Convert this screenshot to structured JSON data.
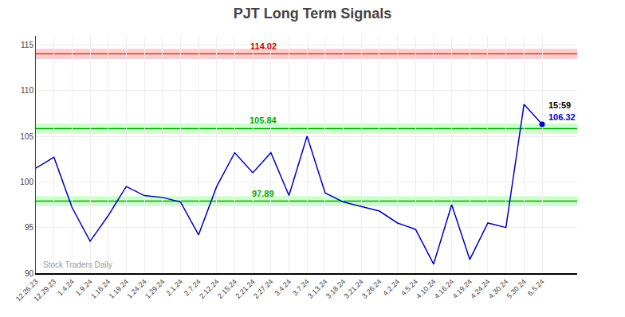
{
  "chart_data": {
    "type": "line",
    "title": "PJT Long Term Signals",
    "categories": [
      "12.26.23",
      "12.29.23",
      "1.4.24",
      "1.9.24",
      "1.16.24",
      "1.19.24",
      "1.24.24",
      "1.29.24",
      "2.1.24",
      "2.7.24",
      "2.12.24",
      "2.15.24",
      "2.21.24",
      "2.27.24",
      "3.4.24",
      "3.7.24",
      "3.13.24",
      "3.18.24",
      "3.21.24",
      "3.26.24",
      "4.2.24",
      "4.5.24",
      "4.10.24",
      "4.16.24",
      "4.19.24",
      "4.24.24",
      "4.30.24",
      "5.30.24",
      "6.5.24"
    ],
    "values": [
      101.5,
      102.7,
      97.2,
      93.5,
      96.3,
      99.5,
      98.5,
      98.3,
      97.8,
      94.2,
      99.5,
      103.2,
      101.0,
      103.2,
      98.5,
      105.0,
      98.8,
      97.8,
      97.3,
      96.8,
      95.5,
      94.8,
      91.0,
      97.5,
      91.5,
      95.5,
      95.0,
      108.5,
      106.32
    ],
    "color": "#0000cc",
    "ylim": [
      90,
      116
    ],
    "yticks": [
      90,
      95,
      100,
      105,
      110,
      115
    ],
    "grid": true,
    "hlines": [
      {
        "value": 114.02,
        "color": "#cc0000",
        "band_color": "#ffcccc"
      },
      {
        "value": 105.84,
        "color": "#00aa00",
        "band_color": "#ccffcc"
      },
      {
        "value": 97.89,
        "color": "#00aa00",
        "band_color": "#ccffcc"
      }
    ],
    "last_point": {
      "label": "15:59",
      "value": 106.32
    },
    "annotations": [
      {
        "text": "Stock Traders Daily"
      }
    ]
  }
}
